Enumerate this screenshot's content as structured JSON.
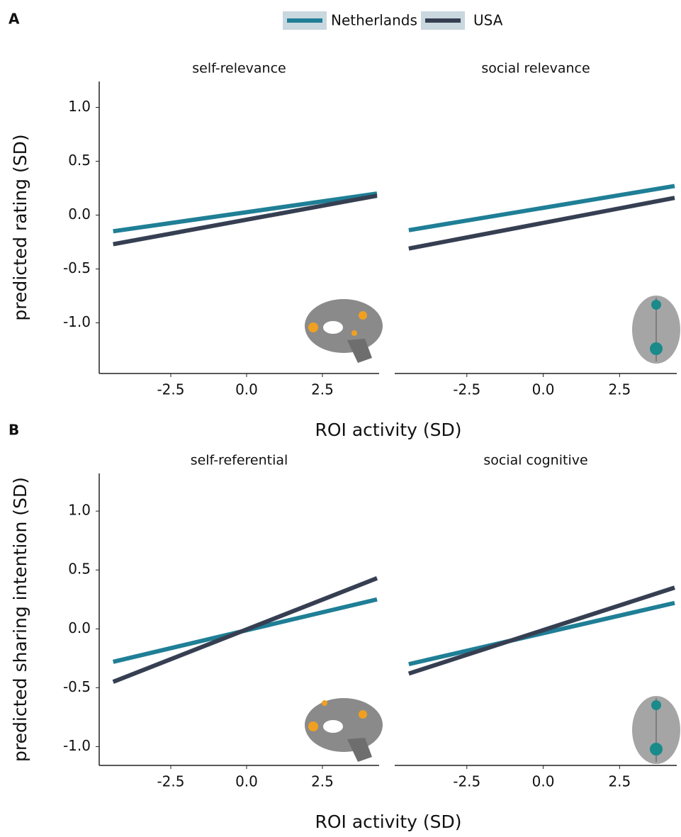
{
  "chart_data": [
    {
      "type": "line",
      "panel": "A",
      "title": "self-relevance",
      "ylabel": "predicted rating (SD)",
      "xlabel": "ROI activity (SD)",
      "x": [
        -4.4,
        4.3
      ],
      "series": [
        {
          "name": "Netherlands",
          "color": "#1f7f96",
          "values": [
            -0.15,
            0.2
          ]
        },
        {
          "name": "USA",
          "color": "#363f52",
          "values": [
            -0.27,
            0.18
          ]
        }
      ],
      "xlim": [
        -4.86,
        4.37
      ],
      "xticks": [
        -2.5,
        {
          "value": 0,
          "label": "0.0"
        },
        2.5
      ],
      "ylim": [
        -1.47,
        1.24
      ],
      "yticks": [
        {
          "value": -1,
          "label": "-1.0"
        },
        -0.5,
        {
          "value": 0,
          "label": "0.0"
        },
        0.5,
        {
          "value": 1,
          "label": "1.0"
        }
      ]
    },
    {
      "type": "line",
      "title": "social relevance",
      "x": [
        -4.4,
        4.3
      ],
      "series": [
        {
          "color": "#1f7f96",
          "values": [
            -0.14,
            0.27
          ]
        },
        {
          "color": "#363f52",
          "values": [
            -0.31,
            0.16
          ]
        }
      ],
      "xlim": [
        -4.86,
        4.37
      ],
      "xticks": [
        -2.5,
        {
          "value": 0,
          "label": "0.0"
        },
        2.5
      ],
      "ylim": [
        -1.47,
        1.24
      ]
    },
    {
      "type": "line",
      "panel": "B",
      "title": "self-referential",
      "ylabel": "predicted sharing intention (SD)",
      "xlabel": "ROI activity (SD)",
      "x": [
        -4.4,
        4.3
      ],
      "series": [
        {
          "color": "#1f7f96",
          "values": [
            -0.28,
            0.25
          ]
        },
        {
          "color": "#363f52",
          "values": [
            -0.45,
            0.43
          ]
        }
      ],
      "xlim": [
        -4.86,
        4.37
      ],
      "xticks": [
        -2.5,
        {
          "value": 0,
          "label": "0.0"
        },
        2.5
      ],
      "ylim": [
        -1.16,
        1.32
      ],
      "yticks": [
        {
          "value": -1,
          "label": "-1.0"
        },
        -0.5,
        {
          "value": 0,
          "label": "0.0"
        },
        0.5,
        {
          "value": 1,
          "label": "1.0"
        }
      ]
    },
    {
      "type": "line",
      "title": "social cognitive",
      "x": [
        -4.4,
        4.3
      ],
      "series": [
        {
          "color": "#1f7f96",
          "values": [
            -0.3,
            0.22
          ]
        },
        {
          "color": "#363f52",
          "values": [
            -0.38,
            0.35
          ]
        }
      ],
      "xlim": [
        -4.86,
        4.37
      ],
      "xticks": [
        -2.5,
        {
          "value": 0,
          "label": "0.0"
        },
        2.5
      ],
      "ylim": [
        -1.16,
        1.32
      ]
    }
  ]
}
